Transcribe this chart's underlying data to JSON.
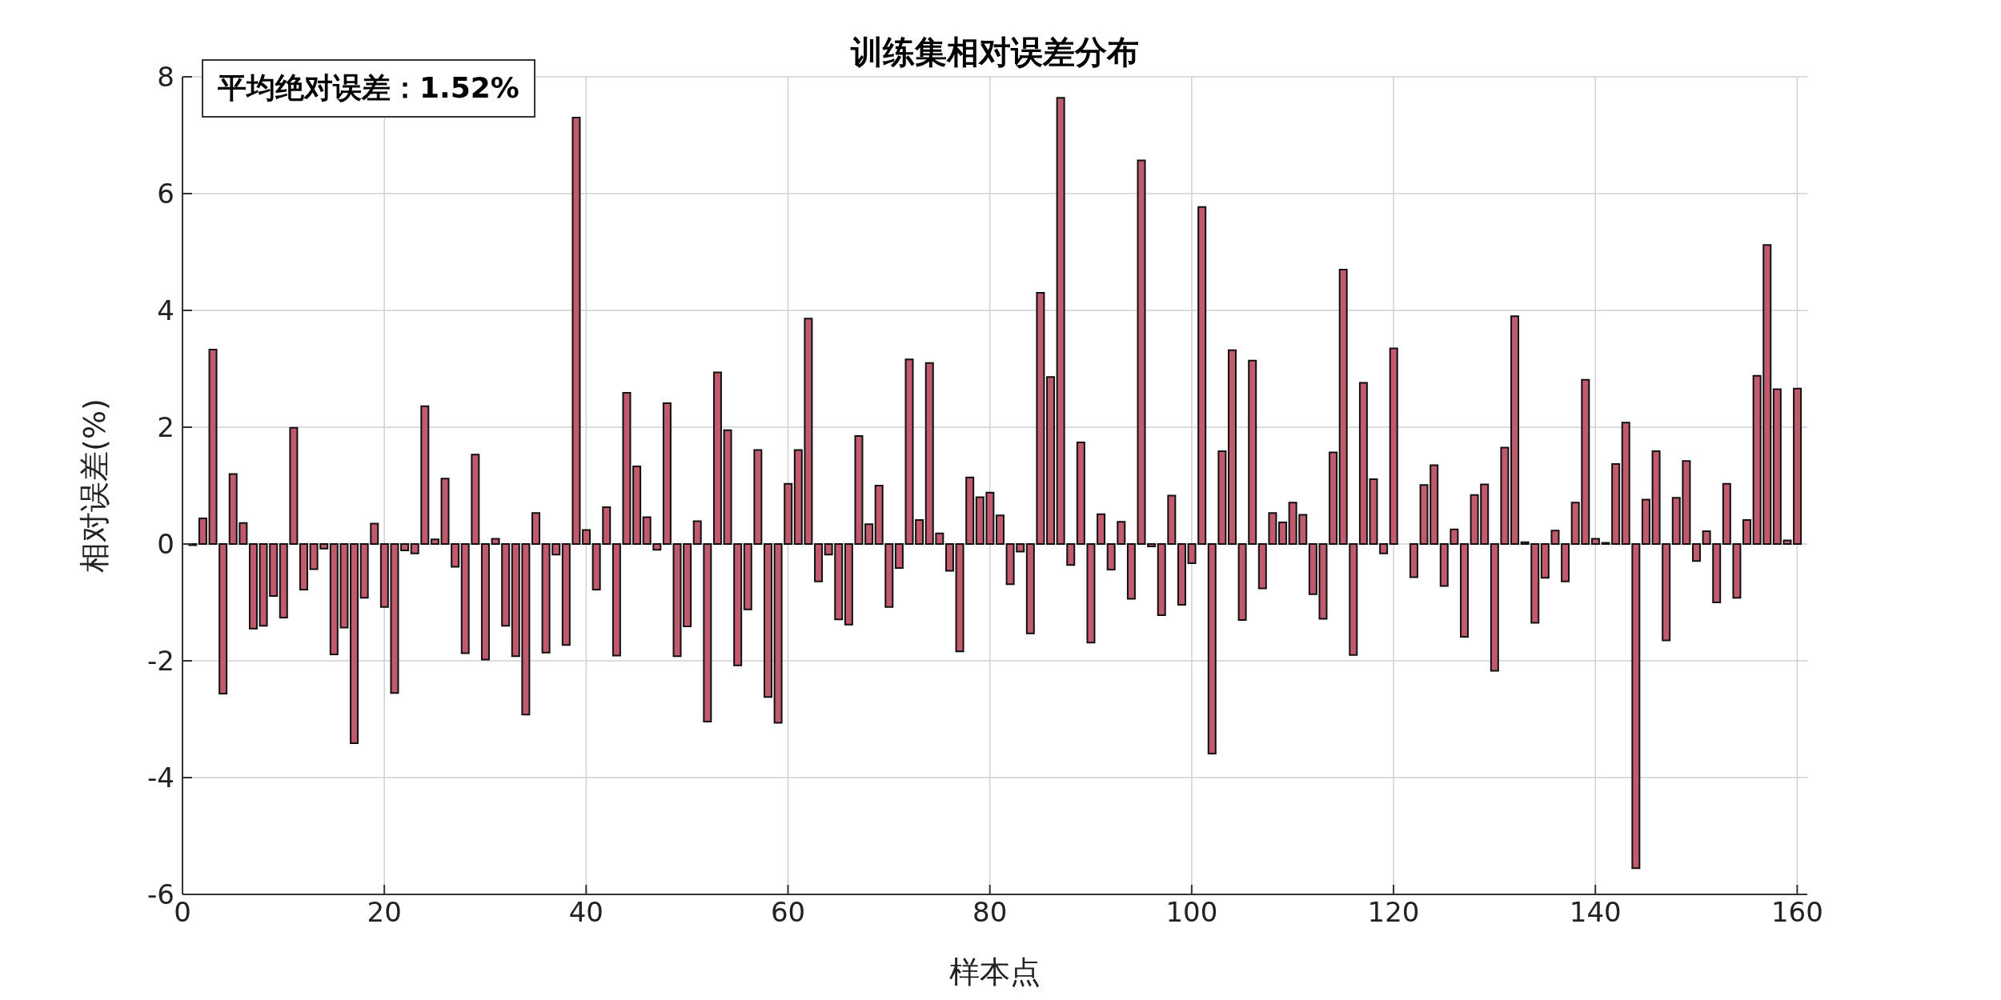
{
  "chart_data": {
    "type": "bar",
    "title": "训练集相对误差分布",
    "xlabel": "样本点",
    "ylabel": "相对误差(%)",
    "annotations": [
      "平均绝对误差：1.52%"
    ],
    "color": "#c05a6c",
    "grid": true,
    "xlim": [
      0,
      161
    ],
    "xticks": [
      0,
      20,
      40,
      60,
      80,
      100,
      120,
      140,
      160
    ],
    "ylim": [
      -6,
      8
    ],
    "yticks": [
      -6,
      -4,
      -2,
      0,
      2,
      4,
      6,
      8
    ],
    "x": [
      1,
      2,
      3,
      4,
      5,
      6,
      7,
      8,
      9,
      10,
      11,
      12,
      13,
      14,
      15,
      16,
      17,
      18,
      19,
      20,
      21,
      22,
      23,
      24,
      25,
      26,
      27,
      28,
      29,
      30,
      31,
      32,
      33,
      34,
      35,
      36,
      37,
      38,
      39,
      40,
      41,
      42,
      43,
      44,
      45,
      46,
      47,
      48,
      49,
      50,
      51,
      52,
      53,
      54,
      55,
      56,
      57,
      58,
      59,
      60,
      61,
      62,
      63,
      64,
      65,
      66,
      67,
      68,
      69,
      70,
      71,
      72,
      73,
      74,
      75,
      76,
      77,
      78,
      79,
      80,
      81,
      82,
      83,
      84,
      85,
      86,
      87,
      88,
      89,
      90,
      91,
      92,
      93,
      94,
      95,
      96,
      97,
      98,
      99,
      100,
      101,
      102,
      103,
      104,
      105,
      106,
      107,
      108,
      109,
      110,
      111,
      112,
      113,
      114,
      115,
      116,
      117,
      118,
      119,
      120,
      121,
      122,
      123,
      124,
      125,
      126,
      127,
      128,
      129,
      130,
      131,
      132,
      133,
      134,
      135,
      136,
      137,
      138,
      139,
      140,
      141,
      142,
      143,
      144,
      145,
      146,
      147,
      148,
      149,
      150,
      151,
      152,
      153,
      154,
      155,
      156,
      157,
      158,
      159,
      160
    ],
    "values": [
      -0.02,
      0.44,
      3.33,
      -2.56,
      1.2,
      0.36,
      -1.45,
      -1.4,
      -0.89,
      -1.26,
      1.99,
      -0.78,
      -0.43,
      -0.08,
      -1.89,
      -1.43,
      -3.41,
      -0.92,
      0.35,
      -1.08,
      -2.55,
      -0.11,
      -0.16,
      2.36,
      0.08,
      1.12,
      -0.39,
      -1.87,
      1.53,
      -1.98,
      0.09,
      -1.4,
      -1.92,
      -2.92,
      0.53,
      -1.86,
      -0.18,
      -1.73,
      7.3,
      0.24,
      -0.78,
      0.63,
      -1.91,
      2.59,
      1.33,
      0.46,
      -0.1,
      2.41,
      -1.92,
      -1.41,
      0.39,
      -3.04,
      2.94,
      1.95,
      -2.08,
      -1.12,
      1.61,
      -2.62,
      -3.06,
      1.03,
      1.61,
      3.86,
      -0.64,
      -0.18,
      -1.29,
      -1.38,
      1.85,
      0.34,
      1.0,
      -1.08,
      -0.41,
      3.16,
      0.41,
      3.1,
      0.18,
      -0.46,
      -1.84,
      1.14,
      0.8,
      0.88,
      0.49,
      -0.69,
      -0.13,
      -1.53,
      4.3,
      2.86,
      7.64,
      -0.36,
      1.74,
      -1.69,
      0.51,
      -0.44,
      0.38,
      -0.94,
      6.57,
      -0.04,
      -1.22,
      0.83,
      -1.04,
      -0.33,
      5.77,
      -3.59,
      1.59,
      3.32,
      -1.3,
      3.14,
      -0.76,
      0.53,
      0.37,
      0.71,
      0.5,
      -0.86,
      -1.28,
      1.57,
      4.7,
      -1.9,
      2.76,
      1.11,
      -0.16,
      3.35,
      0,
      -0.57,
      1.01,
      1.35,
      -0.72,
      0.25,
      -1.59,
      0.84,
      1.02,
      -2.17,
      1.65,
      3.9,
      0.03,
      -1.35,
      -0.58,
      0.23,
      -0.64,
      0.71,
      2.81,
      0.09,
      0.02,
      1.37,
      2.08,
      -5.55,
      0.76,
      1.59,
      -1.65,
      0.79,
      1.42,
      -0.29,
      0.22,
      -1.0,
      1.03,
      -0.92,
      0.41,
      2.88,
      5.12,
      2.65,
      0.06,
      2.66
    ]
  }
}
